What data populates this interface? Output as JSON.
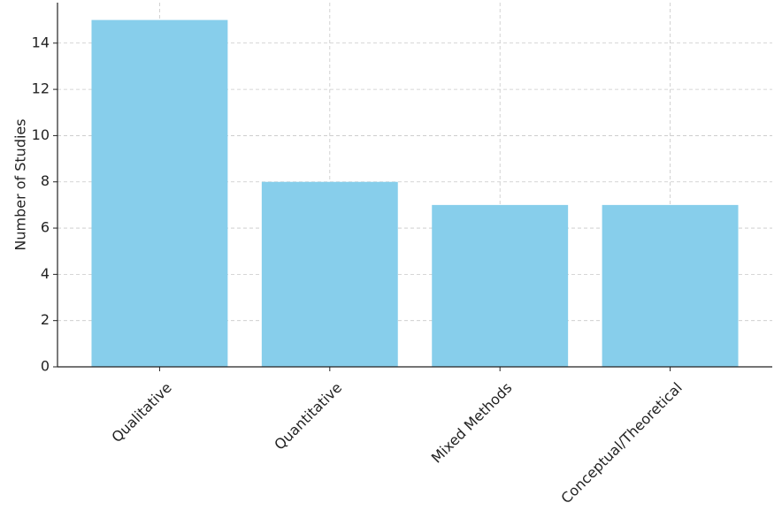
{
  "chart_data": {
    "type": "bar",
    "y_label": "Number of Studies",
    "categories": [
      "Qualitative",
      "Quantitative",
      "Mixed Methods",
      "Conceptual/Theoretical"
    ],
    "values": [
      15,
      8,
      7,
      7
    ],
    "color": "#87ceeb",
    "ylim": [
      0,
      15.75
    ],
    "yticks": [
      0,
      2,
      4,
      6,
      8,
      10,
      12,
      14
    ],
    "grid": true
  }
}
